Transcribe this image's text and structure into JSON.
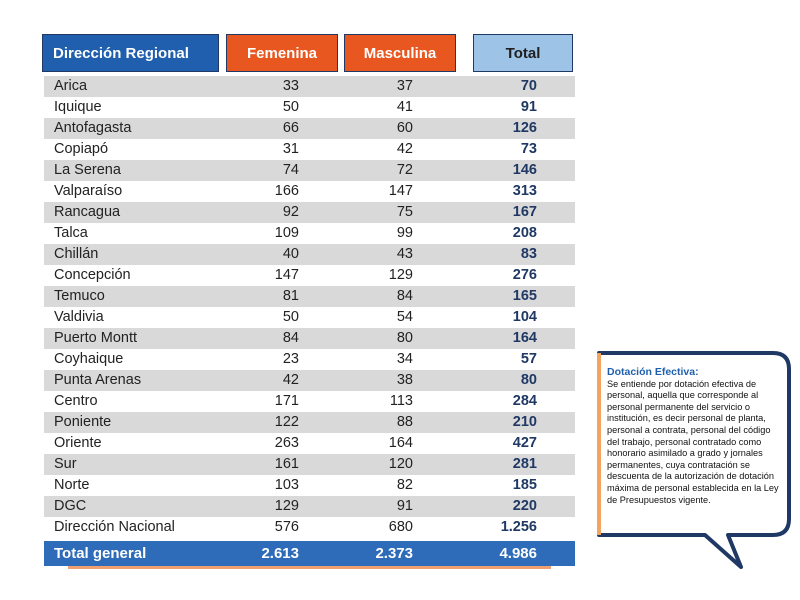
{
  "headers": {
    "region": "Dirección Regional",
    "femenina": "Femenina",
    "masculina": "Masculina",
    "total": "Total"
  },
  "rows": [
    {
      "name": "Arica",
      "fem": "33",
      "masc": "37",
      "total": "70"
    },
    {
      "name": "Iquique",
      "fem": "50",
      "masc": "41",
      "total": "91"
    },
    {
      "name": "Antofagasta",
      "fem": "66",
      "masc": "60",
      "total": "126"
    },
    {
      "name": "Copiapó",
      "fem": "31",
      "masc": "42",
      "total": "73"
    },
    {
      "name": "La Serena",
      "fem": "74",
      "masc": "72",
      "total": "146"
    },
    {
      "name": "Valparaíso",
      "fem": "166",
      "masc": "147",
      "total": "313"
    },
    {
      "name": "Rancagua",
      "fem": "92",
      "masc": "75",
      "total": "167"
    },
    {
      "name": "Talca",
      "fem": "109",
      "masc": "99",
      "total": "208"
    },
    {
      "name": "Chillán",
      "fem": "40",
      "masc": "43",
      "total": "83"
    },
    {
      "name": "Concepción",
      "fem": "147",
      "masc": "129",
      "total": "276"
    },
    {
      "name": "Temuco",
      "fem": "81",
      "masc": "84",
      "total": "165"
    },
    {
      "name": "Valdivia",
      "fem": "50",
      "masc": "54",
      "total": "104"
    },
    {
      "name": "Puerto Montt",
      "fem": "84",
      "masc": "80",
      "total": "164"
    },
    {
      "name": "Coyhaique",
      "fem": "23",
      "masc": "34",
      "total": "57"
    },
    {
      "name": "Punta Arenas",
      "fem": "42",
      "masc": "38",
      "total": "80"
    },
    {
      "name": "Centro",
      "fem": "171",
      "masc": "113",
      "total": "284"
    },
    {
      "name": "Poniente",
      "fem": "122",
      "masc": "88",
      "total": "210"
    },
    {
      "name": "Oriente",
      "fem": "263",
      "masc": "164",
      "total": "427"
    },
    {
      "name": "Sur",
      "fem": "161",
      "masc": "120",
      "total": "281"
    },
    {
      "name": "Norte",
      "fem": "103",
      "masc": "82",
      "total": "185"
    },
    {
      "name": "DGC",
      "fem": "129",
      "masc": "91",
      "total": "220"
    },
    {
      "name": "Dirección Nacional",
      "fem": "576",
      "masc": "680",
      "total": "1.256"
    }
  ],
  "total_general": {
    "name": "Total general",
    "fem": "2.613",
    "masc": "2.373",
    "total": "4.986"
  },
  "callout": {
    "title": "Dotación Efectiva:",
    "body": "Se entiende por dotación efectiva de personal, aquella que corresponde al personal permanente del servicio o institución, es decir personal de planta, personal a contrata, personal del código del trabajo, personal contratado como honorario asimilado a grado y jornales permanentes, cuya contratación se descuenta de la autorización de dotación máxima de personal establecida en la Ley de Presupuestos vigente."
  },
  "colors": {
    "header_blue": "#1f5fae",
    "header_orange": "#e8571f",
    "header_total": "#9dc3e6",
    "row_shade": "#d9d9d9",
    "total_row": "#2e6bb8",
    "callout_border": "#1f3864",
    "callout_accent": "#f4a460"
  }
}
